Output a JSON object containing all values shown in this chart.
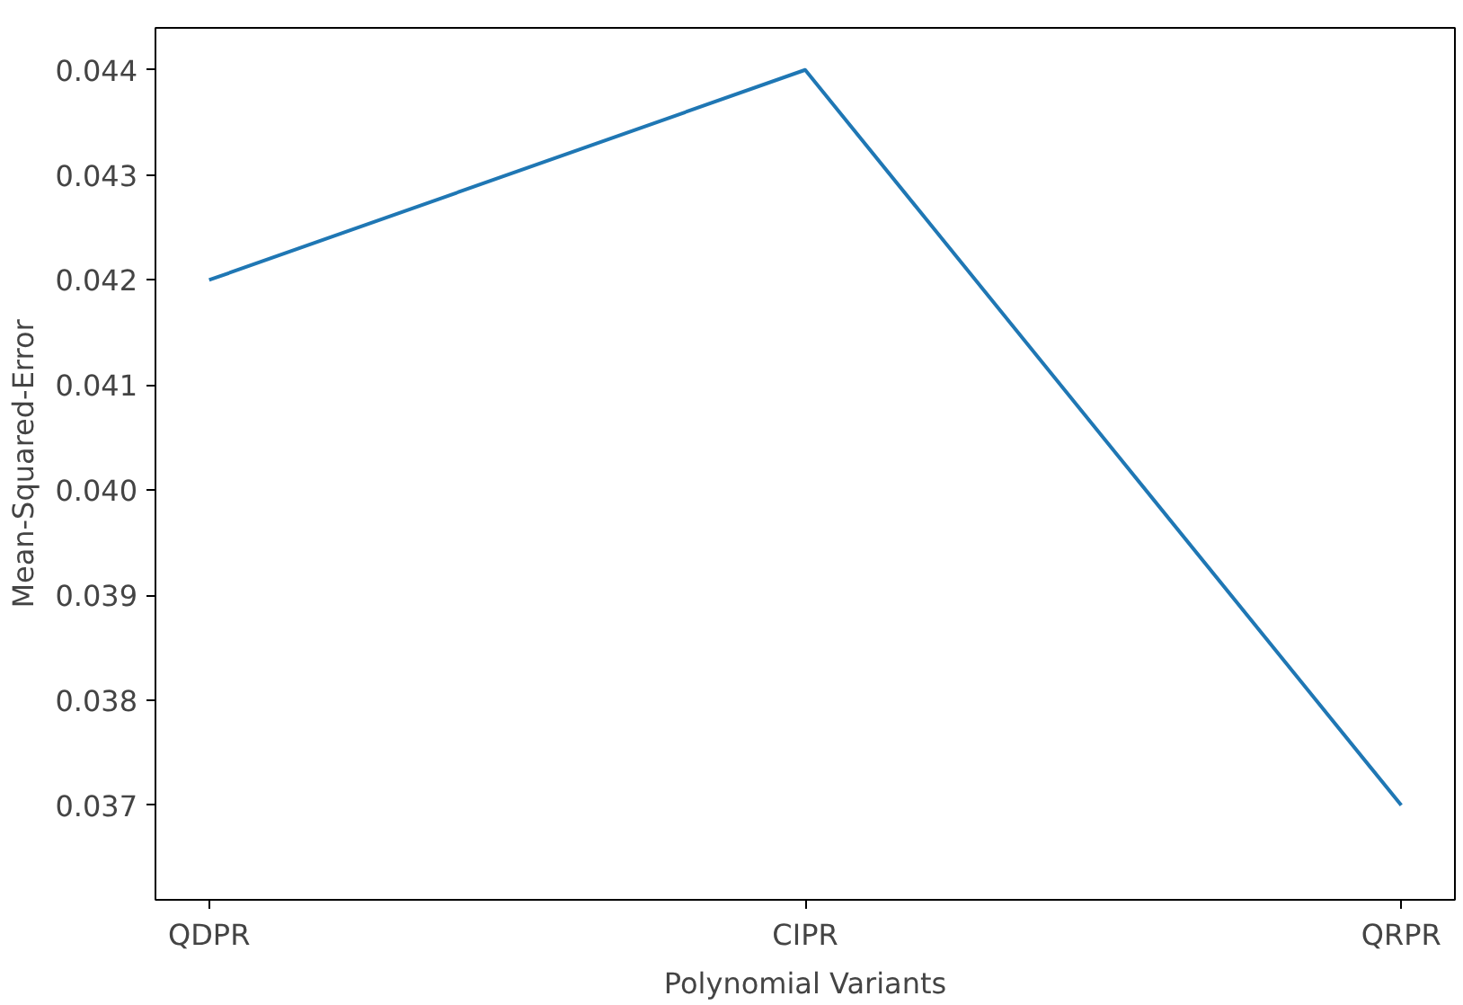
{
  "chart_data": {
    "type": "line",
    "xlabel": "Polynomial Variants",
    "ylabel": "Mean-Squared-Error",
    "categories": [
      "QDPR",
      "CIPR",
      "QRPR"
    ],
    "series": [
      {
        "color": "#1f77b4",
        "values": [
          0.042,
          0.044,
          0.037
        ]
      }
    ],
    "ylim": [
      0.0361,
      0.0444
    ],
    "yticks": [
      {
        "value": 0.037,
        "label": "0.037"
      },
      {
        "value": 0.038,
        "label": "0.038"
      },
      {
        "value": 0.039,
        "label": "0.039"
      },
      {
        "value": 0.04,
        "label": "0.040"
      },
      {
        "value": 0.041,
        "label": "0.041"
      },
      {
        "value": 0.042,
        "label": "0.042"
      },
      {
        "value": 0.043,
        "label": "0.043"
      },
      {
        "value": 0.044,
        "label": "0.044"
      }
    ],
    "grid": false
  }
}
